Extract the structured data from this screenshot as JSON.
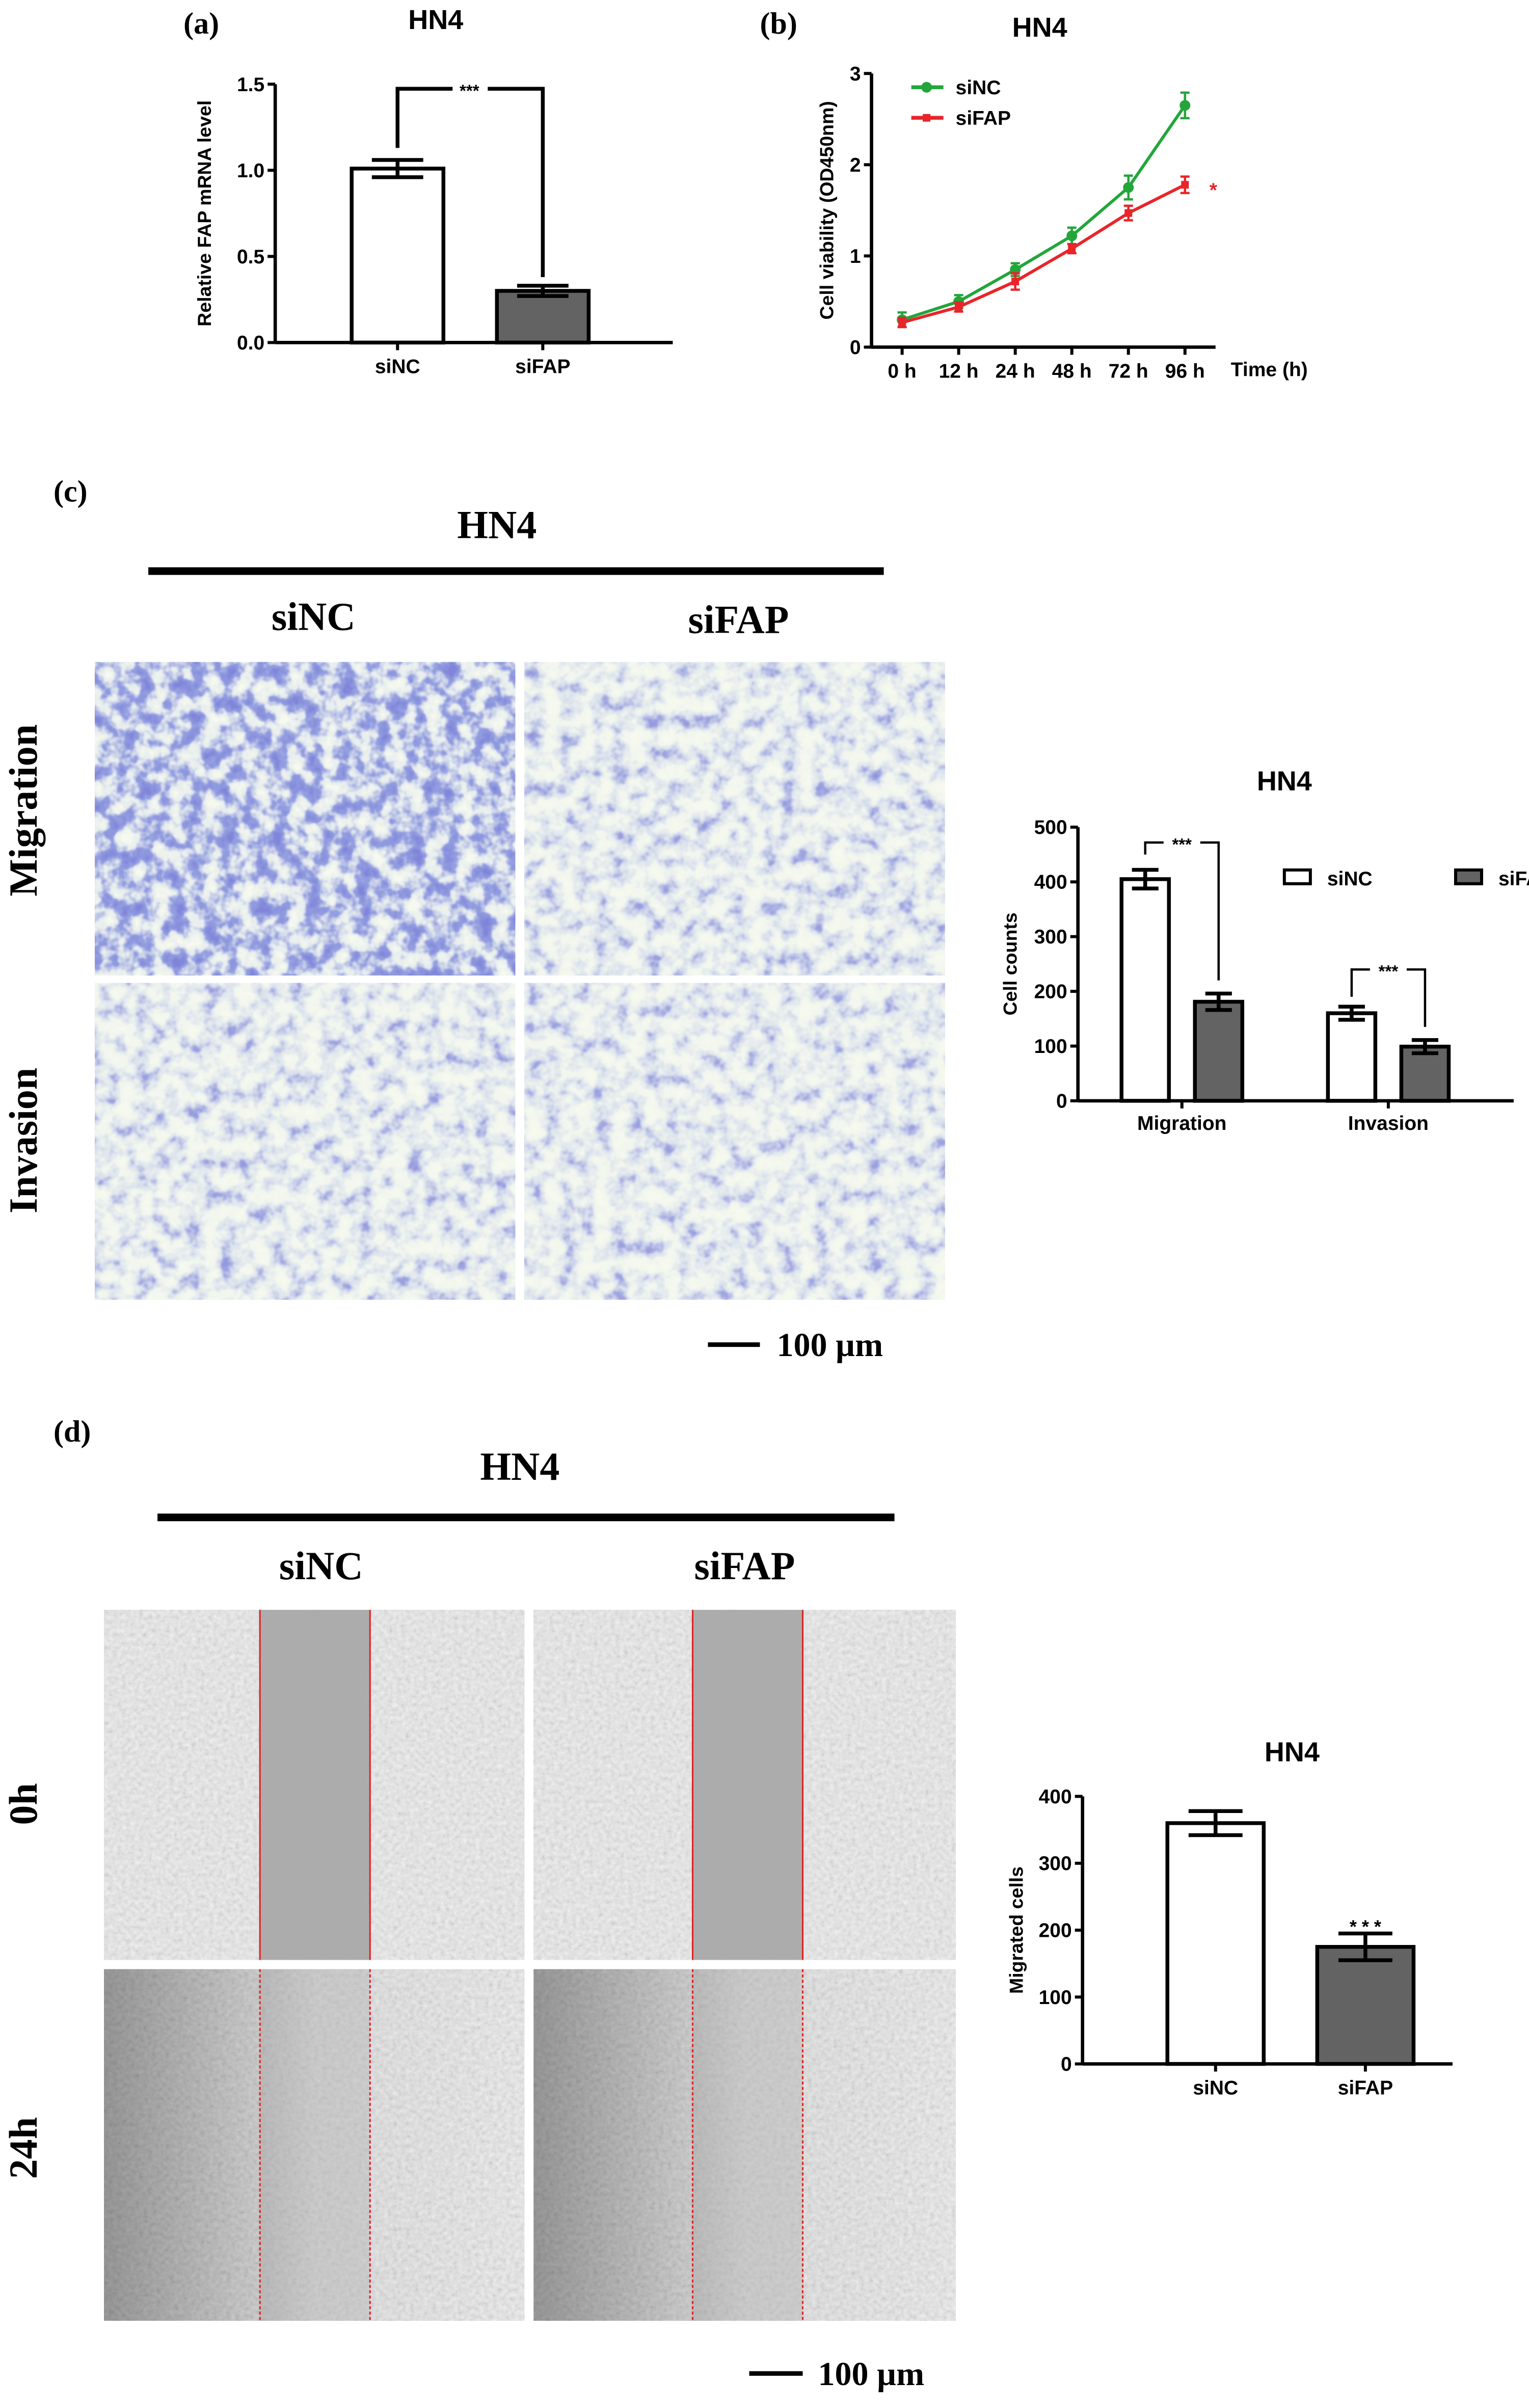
{
  "figure": {
    "panel_a_label": "(a)",
    "panel_b_label": "(b)",
    "panel_c_label": "(c)",
    "panel_d_label": "(d)",
    "panel_c": {
      "cell_line": "HN4",
      "col_labels": [
        "siNC",
        "siFAP"
      ],
      "row_labels": [
        "Migration",
        "Invasion"
      ],
      "scale_bar": "100 µm"
    },
    "panel_d": {
      "cell_line": "HN4",
      "col_labels": [
        "siNC",
        "siFAP"
      ],
      "row_labels": [
        "0h",
        "24h"
      ],
      "scale_bar": "100 µm",
      "scratch_line_color": "#e02020"
    }
  },
  "chart_data": [
    {
      "id": "a",
      "type": "bar",
      "title": "HN4",
      "ylabel": "Relative FAP mRNA level",
      "xlabel": "",
      "categories": [
        "siNC",
        "siFAP"
      ],
      "values": [
        1.01,
        0.3
      ],
      "errors": [
        0.05,
        0.03
      ],
      "fills": [
        "#ffffff",
        "#636363"
      ],
      "ylim": [
        0,
        1.5
      ],
      "yticks": [
        0,
        0.5,
        1.0,
        1.5
      ],
      "ytick_labels": [
        "0.0",
        "0.5",
        "1.0",
        "1.5"
      ],
      "annotations": [
        {
          "type": "bracket",
          "between": [
            "siNC",
            "siFAP"
          ],
          "text": "***"
        }
      ]
    },
    {
      "id": "b",
      "type": "line",
      "title": "HN4",
      "ylabel": "Cell viability (OD450nm)",
      "xlabel": "Time (h)",
      "categories": [
        "0 h",
        "12 h",
        "24 h",
        "48 h",
        "72 h",
        "96 h"
      ],
      "ylim": [
        0,
        3
      ],
      "yticks": [
        0,
        1,
        2,
        3
      ],
      "ytick_labels": [
        "0",
        "1",
        "2",
        "3"
      ],
      "legend": "top-left",
      "series": [
        {
          "name": "siNC",
          "color": "#22a63a",
          "marker": "circle",
          "values": [
            0.3,
            0.5,
            0.85,
            1.22,
            1.75,
            2.65
          ],
          "errors": [
            0.08,
            0.07,
            0.07,
            0.09,
            0.13,
            0.14
          ]
        },
        {
          "name": "siFAP",
          "color": "#e8252a",
          "marker": "square",
          "values": [
            0.27,
            0.44,
            0.72,
            1.08,
            1.47,
            1.78
          ],
          "errors": [
            0.05,
            0.05,
            0.09,
            0.05,
            0.08,
            0.09
          ]
        }
      ],
      "annotations": [
        {
          "type": "text",
          "at": "96 h",
          "series": "siFAP",
          "text": "*",
          "color": "#e8252a"
        }
      ]
    },
    {
      "id": "c",
      "type": "bar",
      "title": "HN4",
      "ylabel": "Cell counts",
      "xlabel": "",
      "categories": [
        "Migration",
        "Invasion"
      ],
      "legend": "top-right",
      "series": [
        {
          "name": "siNC",
          "fill": "#ffffff",
          "values": [
            405,
            160
          ],
          "errors": [
            17,
            12
          ]
        },
        {
          "name": "siFAP",
          "fill": "#636363",
          "values": [
            181,
            99
          ],
          "errors": [
            15,
            12
          ]
        }
      ],
      "ylim": [
        0,
        500
      ],
      "yticks": [
        0,
        100,
        200,
        300,
        400,
        500
      ],
      "ytick_labels": [
        "0",
        "100",
        "200",
        "300",
        "400",
        "500"
      ],
      "annotations": [
        {
          "type": "bracket",
          "category": "Migration",
          "text": "***"
        },
        {
          "type": "bracket",
          "category": "Invasion",
          "text": "***"
        }
      ]
    },
    {
      "id": "d",
      "type": "bar",
      "title": "HN4",
      "ylabel": "Migrated cells",
      "xlabel": "",
      "categories": [
        "siNC",
        "siFAP"
      ],
      "values": [
        360,
        175
      ],
      "errors": [
        18,
        20
      ],
      "fills": [
        "#ffffff",
        "#636363"
      ],
      "ylim": [
        0,
        400
      ],
      "yticks": [
        0,
        100,
        200,
        300,
        400
      ],
      "ytick_labels": [
        "0",
        "100",
        "200",
        "300",
        "400"
      ],
      "annotations": [
        {
          "type": "text",
          "at": "siFAP",
          "text": "* * *"
        }
      ]
    }
  ]
}
